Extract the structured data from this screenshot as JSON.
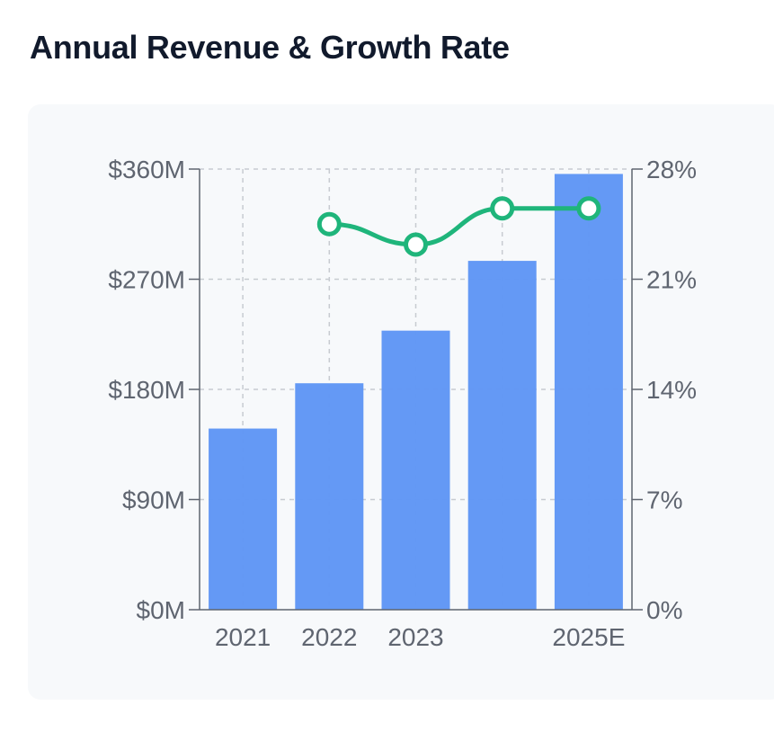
{
  "title": "Annual Revenue & Growth Rate",
  "colors": {
    "bar": "#6197f5",
    "line": "#1fb57b",
    "axis": "#5f6570",
    "grid": "#c7cbd1",
    "card": "#f7f9fb",
    "title": "#111a2c"
  },
  "chart_data": {
    "type": "bar",
    "title": "Annual Revenue & Growth Rate",
    "categories": [
      "2021",
      "2022",
      "2023",
      "",
      "2025E"
    ],
    "series": [
      {
        "type": "bar",
        "axis": "left",
        "values": [
          148,
          185,
          228,
          285,
          356
        ]
      },
      {
        "type": "line",
        "axis": "right",
        "values": [
          null,
          24.5,
          23.2,
          25.5,
          25.5
        ]
      }
    ],
    "y_left": {
      "range": [
        0,
        360
      ],
      "ticks": [
        0,
        90,
        180,
        270,
        360
      ],
      "tick_labels": [
        "$0M",
        "$90M",
        "$180M",
        "$270M",
        "$360M"
      ]
    },
    "y_right": {
      "range": [
        0,
        28
      ],
      "ticks": [
        0,
        7,
        14,
        21,
        28
      ],
      "tick_labels": [
        "0%",
        "7%",
        "14%",
        "21%",
        "28%"
      ]
    },
    "grid": true,
    "legend": "none"
  }
}
